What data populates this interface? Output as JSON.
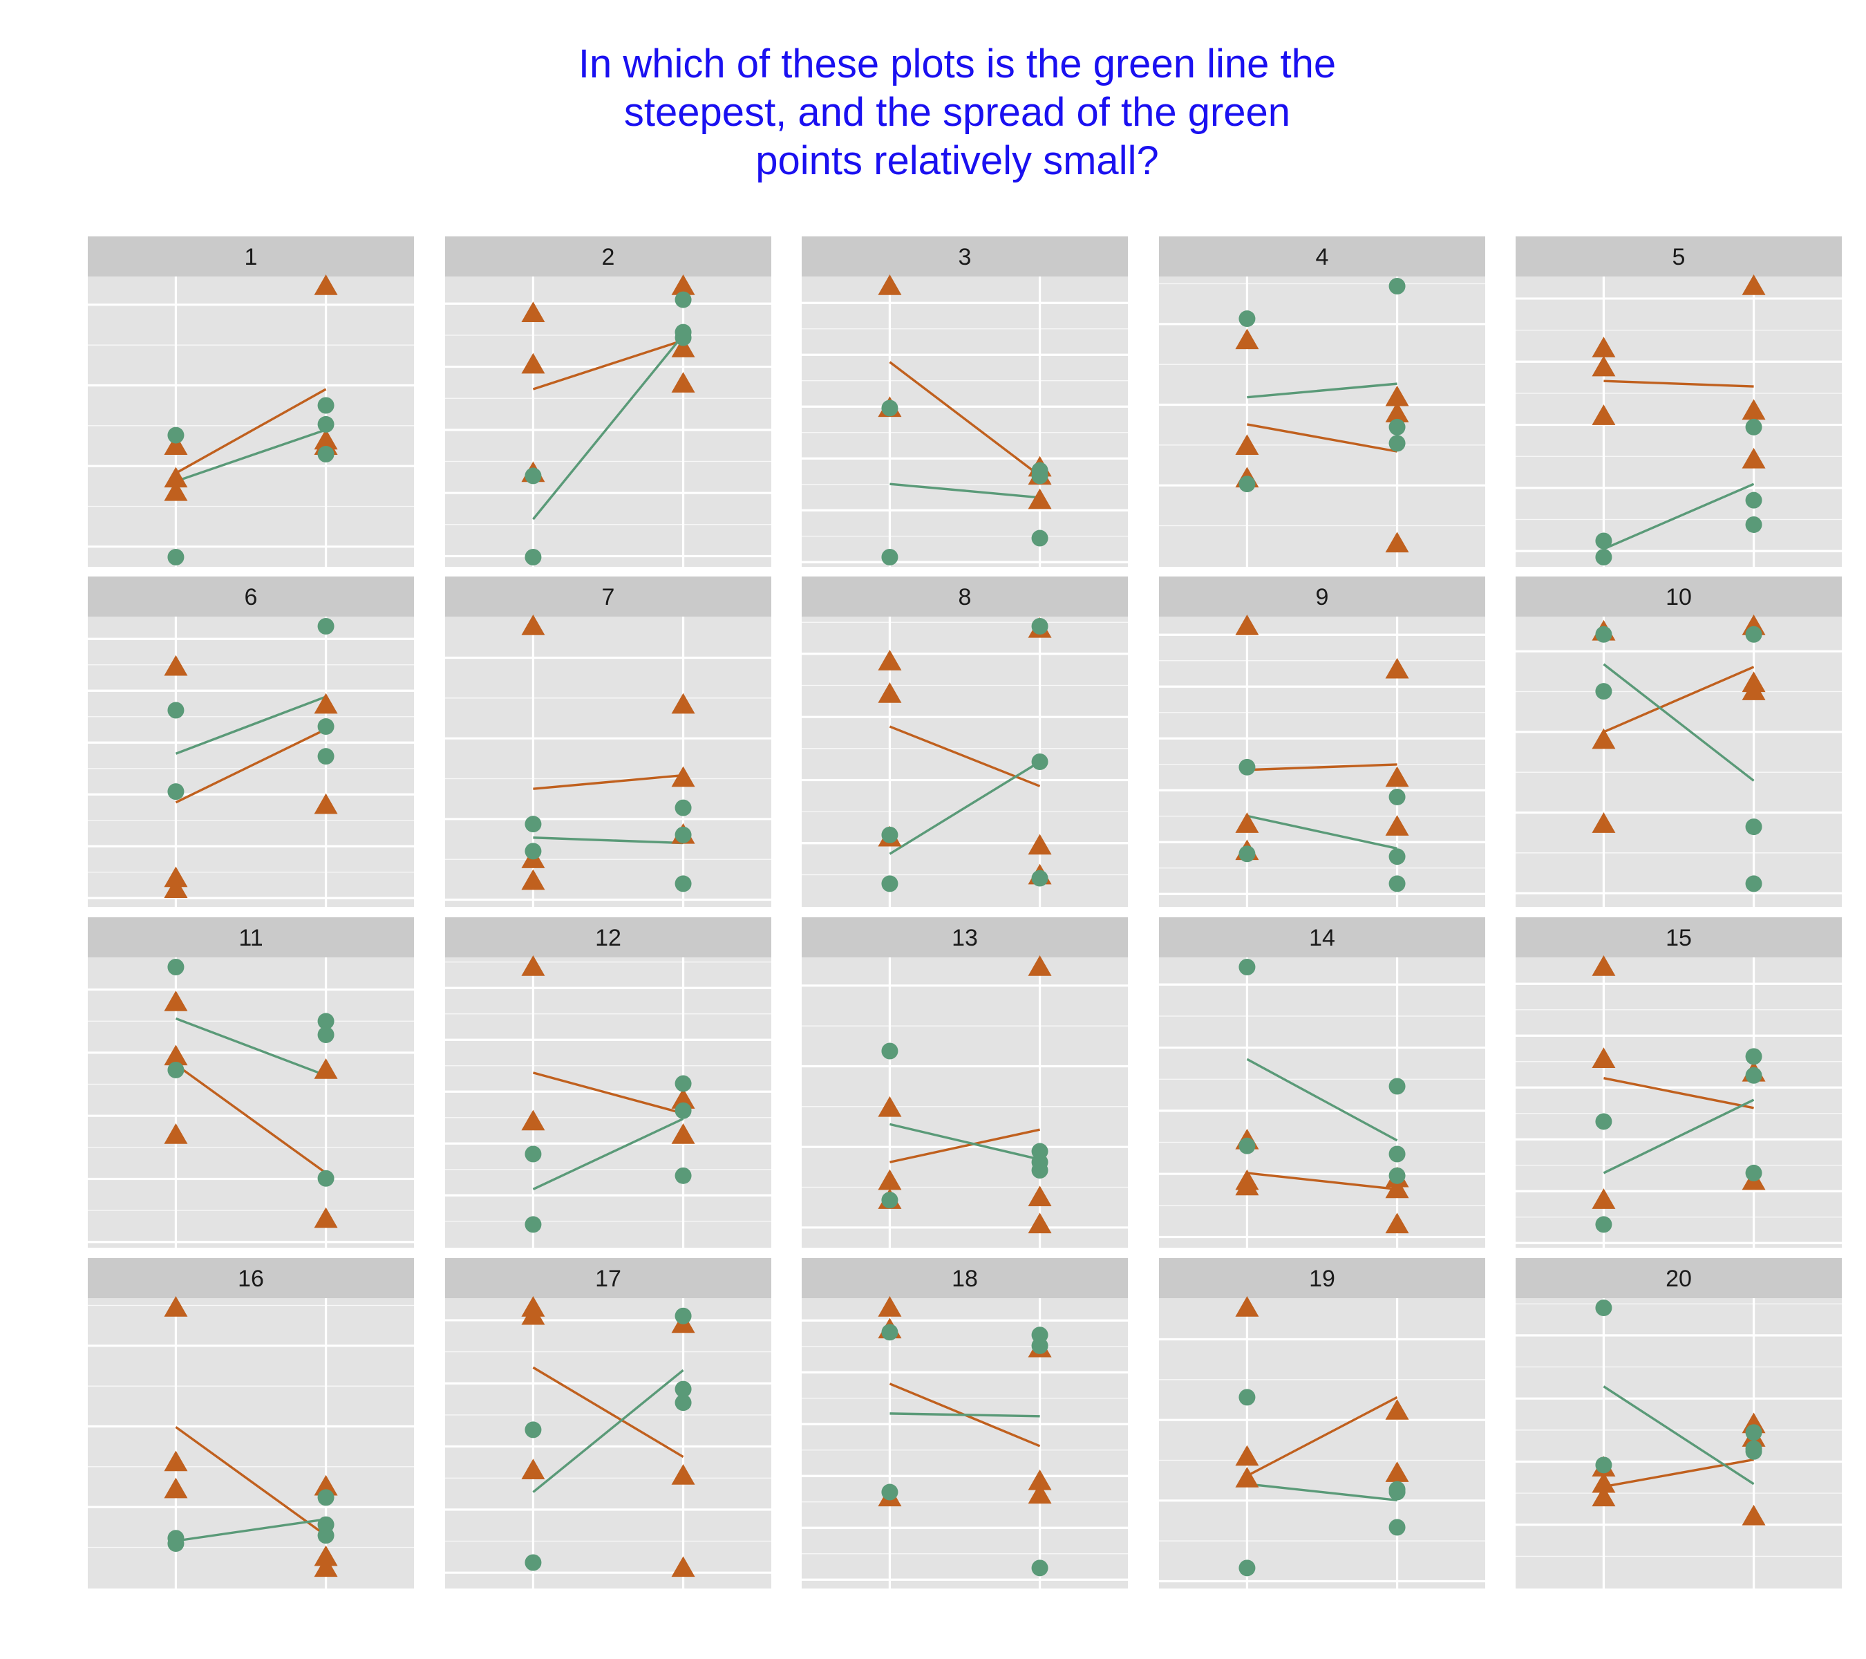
{
  "title_lines": [
    "In which of these plots is the green line the",
    "steepest, and the spread of the green",
    "points relatively small?"
  ],
  "colors": {
    "green": "#5a9a78",
    "orange": "#c0601e",
    "panel_bg": "#e3e3e3",
    "strip_bg": "#cacaca",
    "grid": "#ffffff",
    "title": "#1a10f0"
  },
  "chart_data": {
    "type": "scatter",
    "layout": "5x4 facets",
    "ylim": [
      0,
      1
    ],
    "x": [
      1,
      2
    ],
    "series": [
      {
        "name": "",
        "marker": "circle",
        "color": "#5a9a78"
      },
      {
        "name": "",
        "marker": "triangle",
        "color": "#c0601e"
      }
    ],
    "panels": [
      {
        "label": "1",
        "green": {
          "x1": [
            0.45,
            0.0
          ],
          "x2": [
            0.56,
            0.49,
            0.38
          ],
          "line": [
            0.28,
            0.47
          ]
        },
        "orange": {
          "x1": [
            0.41,
            0.29,
            0.24
          ],
          "x2": [
            1.0,
            0.43,
            0.41
          ],
          "line": [
            0.31,
            0.62
          ]
        }
      },
      {
        "label": "2",
        "green": {
          "x1": [
            0.3,
            0.0
          ],
          "x2": [
            0.95,
            0.83,
            0.81
          ],
          "line": [
            0.14,
            0.82
          ]
        },
        "orange": {
          "x1": [
            0.9,
            0.71,
            0.31
          ],
          "x2": [
            1.0,
            0.77,
            0.64
          ],
          "line": [
            0.62,
            0.8
          ]
        }
      },
      {
        "label": "3",
        "green": {
          "x1": [
            0.55,
            0.0
          ],
          "x2": [
            0.32,
            0.3,
            0.07
          ],
          "line": [
            0.27,
            0.22
          ]
        },
        "orange": {
          "x1": [
            1.0,
            0.55
          ],
          "x2": [
            0.33,
            0.3,
            0.21
          ],
          "line": [
            0.72,
            0.3
          ]
        }
      },
      {
        "label": "4",
        "green": {
          "x1": [
            0.88,
            0.27
          ],
          "x2": [
            1.0,
            0.48,
            0.42
          ],
          "line": [
            0.59,
            0.64
          ]
        },
        "orange": {
          "x1": [
            0.8,
            0.41,
            0.29
          ],
          "x2": [
            0.59,
            0.53,
            0.05
          ],
          "line": [
            0.49,
            0.39
          ]
        }
      },
      {
        "label": "5",
        "green": {
          "x1": [
            0.06,
            0.0
          ],
          "x2": [
            0.48,
            0.21,
            0.12
          ],
          "line": [
            0.03,
            0.27
          ]
        },
        "orange": {
          "x1": [
            0.77,
            0.7,
            0.52
          ],
          "x2": [
            1.0,
            0.54,
            0.36
          ],
          "line": [
            0.65,
            0.63
          ]
        }
      },
      {
        "label": "6",
        "green": {
          "x1": [
            0.69,
            0.39
          ],
          "x2": [
            1.0,
            0.63,
            0.52
          ],
          "line": [
            0.53,
            0.74
          ]
        },
        "orange": {
          "x1": [
            0.85,
            0.07,
            0.03
          ],
          "x2": [
            0.71,
            0.34
          ],
          "line": [
            0.35,
            0.62
          ]
        }
      },
      {
        "label": "7",
        "green": {
          "x1": [
            0.27,
            0.17
          ],
          "x2": [
            0.33,
            0.23,
            0.05
          ],
          "line": [
            0.22,
            0.2
          ]
        },
        "orange": {
          "x1": [
            1.0,
            0.14,
            0.06
          ],
          "x2": [
            0.71,
            0.44,
            0.23
          ],
          "line": [
            0.4,
            0.45
          ]
        }
      },
      {
        "label": "8",
        "green": {
          "x1": [
            0.23,
            0.05
          ],
          "x2": [
            1.0,
            0.5,
            0.07
          ],
          "line": [
            0.16,
            0.5
          ]
        },
        "orange": {
          "x1": [
            0.87,
            0.75,
            0.22
          ],
          "x2": [
            0.99,
            0.19,
            0.08
          ],
          "line": [
            0.63,
            0.41
          ]
        }
      },
      {
        "label": "9",
        "green": {
          "x1": [
            0.48,
            0.16
          ],
          "x2": [
            0.37,
            0.15,
            0.05
          ],
          "line": [
            0.3,
            0.18
          ]
        },
        "orange": {
          "x1": [
            1.0,
            0.27,
            0.17
          ],
          "x2": [
            0.84,
            0.44,
            0.26
          ],
          "line": [
            0.47,
            0.49
          ]
        }
      },
      {
        "label": "10",
        "green": {
          "x1": [
            0.97,
            0.76
          ],
          "x2": [
            0.97,
            0.26,
            0.05
          ],
          "line": [
            0.86,
            0.43
          ]
        },
        "orange": {
          "x1": [
            0.98,
            0.58,
            0.27
          ],
          "x2": [
            1.0,
            0.79,
            0.76
          ],
          "line": [
            0.61,
            0.85
          ]
        }
      },
      {
        "label": "11",
        "green": {
          "x1": [
            1.0,
            0.62
          ],
          "x2": [
            0.8,
            0.75,
            0.22
          ],
          "line": [
            0.81,
            0.6
          ]
        },
        "orange": {
          "x1": [
            0.87,
            0.67,
            0.38
          ],
          "x2": [
            0.62,
            0.07
          ],
          "line": [
            0.64,
            0.24
          ]
        }
      },
      {
        "label": "12",
        "green": {
          "x1": [
            0.31,
            0.05
          ],
          "x2": [
            0.57,
            0.47,
            0.23
          ],
          "line": [
            0.18,
            0.44
          ]
        },
        "orange": {
          "x1": [
            1.0,
            0.43
          ],
          "x2": [
            0.51,
            0.38
          ],
          "line": [
            0.61,
            0.46
          ]
        }
      },
      {
        "label": "13",
        "green": {
          "x1": [
            0.69,
            0.14
          ],
          "x2": [
            0.32,
            0.28,
            0.25
          ],
          "line": [
            0.42,
            0.29
          ]
        },
        "orange": {
          "x1": [
            0.48,
            0.21,
            0.14
          ],
          "x2": [
            1.0,
            0.15,
            0.05
          ],
          "line": [
            0.28,
            0.4
          ]
        }
      },
      {
        "label": "14",
        "green": {
          "x1": [
            1.0,
            0.34
          ],
          "x2": [
            0.56,
            0.31,
            0.23
          ],
          "line": [
            0.66,
            0.36
          ]
        },
        "orange": {
          "x1": [
            0.36,
            0.21,
            0.19
          ],
          "x2": [
            0.22,
            0.18,
            0.05
          ],
          "line": [
            0.24,
            0.18
          ]
        }
      },
      {
        "label": "15",
        "green": {
          "x1": [
            0.43,
            0.05
          ],
          "x2": [
            0.67,
            0.6,
            0.24
          ],
          "line": [
            0.24,
            0.51
          ]
        },
        "orange": {
          "x1": [
            1.0,
            0.66,
            0.14
          ],
          "x2": [
            0.61,
            0.21
          ],
          "line": [
            0.59,
            0.48
          ]
        }
      },
      {
        "label": "16",
        "green": {
          "x1": [
            0.15,
            0.13
          ],
          "x2": [
            0.3,
            0.2,
            0.16
          ],
          "line": [
            0.14,
            0.22
          ]
        },
        "orange": {
          "x1": [
            1.0,
            0.43,
            0.33
          ],
          "x2": [
            0.34,
            0.08,
            0.04
          ],
          "line": [
            0.56,
            0.16
          ]
        }
      },
      {
        "label": "17",
        "green": {
          "x1": [
            0.55,
            0.06
          ],
          "x2": [
            0.97,
            0.7,
            0.65
          ],
          "line": [
            0.32,
            0.77
          ]
        },
        "orange": {
          "x1": [
            1.0,
            0.97,
            0.4
          ],
          "x2": [
            0.94,
            0.38,
            0.04
          ],
          "line": [
            0.78,
            0.45
          ]
        }
      },
      {
        "label": "18",
        "green": {
          "x1": [
            0.91,
            0.32
          ],
          "x2": [
            0.9,
            0.86,
            0.04
          ],
          "line": [
            0.61,
            0.6
          ]
        },
        "orange": {
          "x1": [
            1.0,
            0.92,
            0.3
          ],
          "x2": [
            0.85,
            0.36,
            0.31
          ],
          "line": [
            0.72,
            0.49
          ]
        }
      },
      {
        "label": "19",
        "green": {
          "x1": [
            0.67,
            0.04
          ],
          "x2": [
            0.33,
            0.32,
            0.19
          ],
          "line": [
            0.35,
            0.29
          ]
        },
        "orange": {
          "x1": [
            1.0,
            0.45,
            0.37
          ],
          "x2": [
            0.62,
            0.39
          ],
          "line": [
            0.38,
            0.67
          ]
        }
      },
      {
        "label": "20",
        "green": {
          "x1": [
            1.0,
            0.42
          ],
          "x2": [
            0.54,
            0.48,
            0.47
          ],
          "line": [
            0.71,
            0.35
          ]
        },
        "orange": {
          "x1": [
            0.41,
            0.35,
            0.3
          ],
          "x2": [
            0.57,
            0.52,
            0.23
          ],
          "line": [
            0.34,
            0.44
          ]
        }
      }
    ]
  }
}
